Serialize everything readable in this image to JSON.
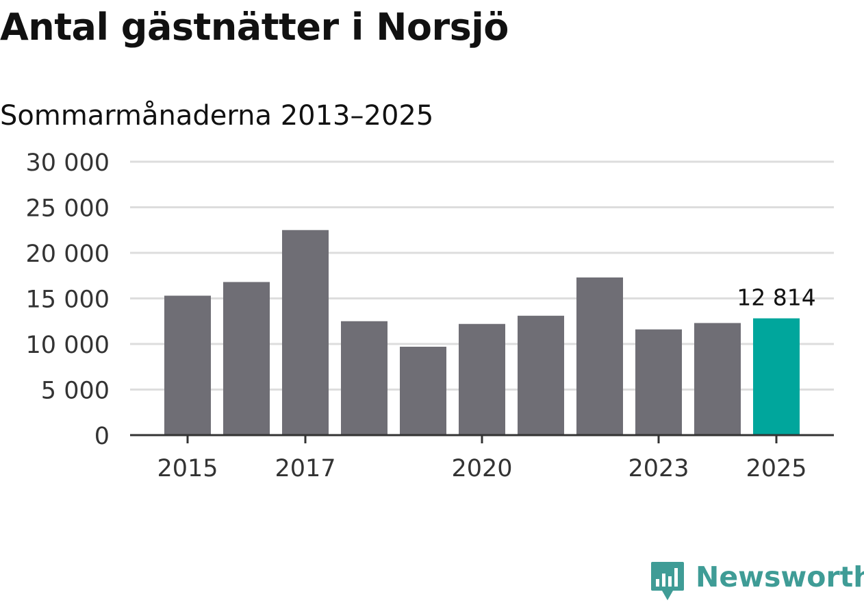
{
  "title": "Antal gästnätter i Norsjö",
  "subtitle": "Sommarmånaderna 2013–2025",
  "brand": {
    "name": "Newsworthy",
    "color": "#3f9c96",
    "icon": "newsworthy-logo-icon"
  },
  "chart_data": {
    "type": "bar",
    "categories": [
      "2015",
      "2016",
      "2017",
      "2018",
      "2019",
      "2020",
      "2021",
      "2022",
      "2023",
      "2024",
      "2025"
    ],
    "values": [
      15300,
      16800,
      22500,
      12500,
      9700,
      12200,
      13100,
      17300,
      11600,
      12300,
      12814
    ],
    "x_tick_labels": [
      "2015",
      "2017",
      "2020",
      "2023",
      "2025"
    ],
    "y_ticks": [
      0,
      5000,
      10000,
      15000,
      20000,
      25000,
      30000
    ],
    "y_tick_labels": [
      "0",
      "5 000",
      "10 000",
      "15 000",
      "20 000",
      "25 000",
      "30 000"
    ],
    "ylim": [
      0,
      30000
    ],
    "highlight_category": "2025",
    "highlight_label": "12 814",
    "colors": {
      "bar": "#6f6e75",
      "highlight": "#00a69c",
      "grid": "#dddddd",
      "axis": "#333333"
    },
    "grid": true,
    "legend": "none"
  }
}
